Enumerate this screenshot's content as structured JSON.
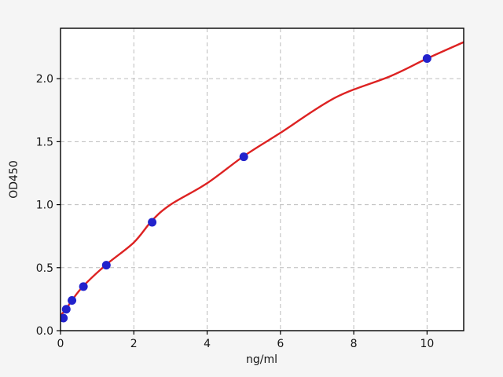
{
  "figure": {
    "background_color": "#f5f5f5",
    "plot_background_color": "#ffffff",
    "border_color": "#000000",
    "grid_color": "#bcbcbc",
    "tick_color": "#000000",
    "text_color": "#161616",
    "line_color": "#dd2222",
    "marker_color": "#2222cc"
  },
  "chart_data": {
    "type": "scatter",
    "title": "",
    "xlabel": "ng/ml",
    "ylabel": "OD450",
    "xlim": [
      0,
      11
    ],
    "ylim": [
      0,
      2.4
    ],
    "x_ticks": [
      0,
      2,
      4,
      6,
      8,
      10
    ],
    "x_tick_labels": [
      "0",
      "2",
      "4",
      "6",
      "8",
      "10"
    ],
    "y_ticks": [
      0.0,
      0.5,
      1.0,
      1.5,
      2.0
    ],
    "y_tick_labels": [
      "0.0",
      "0.5",
      "1.0",
      "1.5",
      "2.0"
    ],
    "grid": true,
    "grid_style": "dashed",
    "legend": "none",
    "series": [
      {
        "name": "standards",
        "style": "markers",
        "points": [
          {
            "x": 0.078,
            "y": 0.1
          },
          {
            "x": 0.156,
            "y": 0.17
          },
          {
            "x": 0.3125,
            "y": 0.24
          },
          {
            "x": 0.625,
            "y": 0.35
          },
          {
            "x": 1.25,
            "y": 0.52
          },
          {
            "x": 2.5,
            "y": 0.86
          },
          {
            "x": 5,
            "y": 1.38
          },
          {
            "x": 10,
            "y": 2.16
          }
        ]
      },
      {
        "name": "fit-curve",
        "style": "line",
        "points": [
          {
            "x": 0,
            "y": 0.12
          },
          {
            "x": 0.16,
            "y": 0.175
          },
          {
            "x": 0.31,
            "y": 0.24
          },
          {
            "x": 0.625,
            "y": 0.355
          },
          {
            "x": 1.25,
            "y": 0.525
          },
          {
            "x": 2,
            "y": 0.7
          },
          {
            "x": 2.5,
            "y": 0.875
          },
          {
            "x": 3,
            "y": 1.0
          },
          {
            "x": 4,
            "y": 1.17
          },
          {
            "x": 5,
            "y": 1.385
          },
          {
            "x": 6,
            "y": 1.57
          },
          {
            "x": 7.5,
            "y": 1.85
          },
          {
            "x": 9,
            "y": 2.02
          },
          {
            "x": 10,
            "y": 2.16
          },
          {
            "x": 11,
            "y": 2.29
          }
        ]
      }
    ]
  }
}
